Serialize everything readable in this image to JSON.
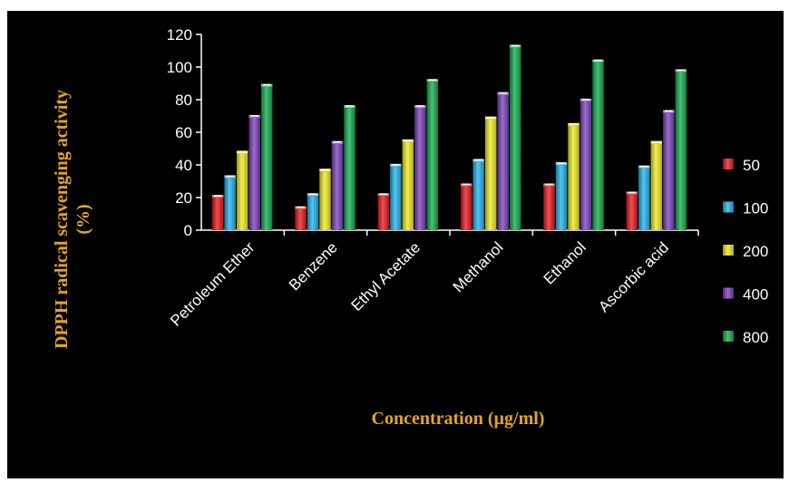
{
  "chart_data": {
    "type": "bar",
    "title": "",
    "xlabel": "Concentration (µg/ml)",
    "ylabel_line1": "DPPH radical scavenging activity",
    "ylabel_line2": "(%)",
    "categories": [
      "Petroleum Ether",
      "Benzene",
      "Ethyl Acetate",
      "Methanol",
      "Ethanol",
      "Ascorbic acid"
    ],
    "ylim": [
      0,
      120
    ],
    "yticks": [
      0,
      20,
      40,
      60,
      80,
      100,
      120
    ],
    "grid": false,
    "legend_position": "right",
    "series": [
      {
        "name": "50",
        "color": "#e8141b",
        "values": [
          20,
          13,
          21,
          27,
          27,
          22
        ]
      },
      {
        "name": "100",
        "color": "#1eb0e8",
        "values": [
          32,
          21,
          39,
          42,
          40,
          38
        ]
      },
      {
        "name": "200",
        "color": "#ece91c",
        "values": [
          47,
          36,
          54,
          68,
          64,
          53
        ]
      },
      {
        "name": "400",
        "color": "#7a3cb8",
        "values": [
          69,
          53,
          75,
          83,
          79,
          72
        ]
      },
      {
        "name": "800",
        "color": "#0fa84a",
        "values": [
          88,
          75,
          91,
          112,
          103,
          97
        ]
      }
    ]
  }
}
